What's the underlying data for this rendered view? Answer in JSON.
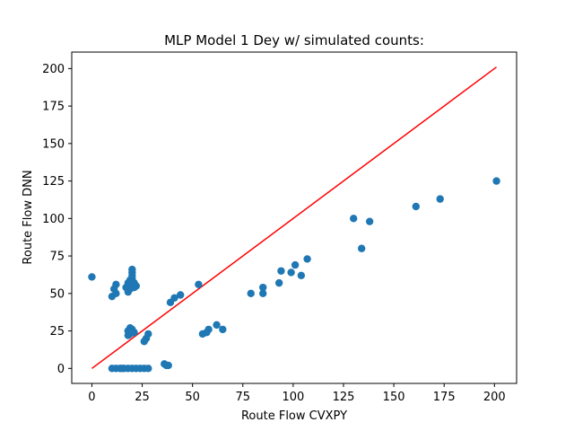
{
  "chart_data": {
    "type": "scatter",
    "title": "MLP Model 1 Dey w/ simulated counts:",
    "xlabel": "Route Flow CVXPY",
    "ylabel": "Route Flow DNN",
    "xlim": [
      -10,
      211
    ],
    "ylim": [
      -10,
      211
    ],
    "xticks": [
      0,
      25,
      50,
      75,
      100,
      125,
      150,
      175,
      200
    ],
    "yticks": [
      0,
      25,
      50,
      75,
      100,
      125,
      150,
      175,
      200
    ],
    "grid": false,
    "colors": {
      "points": "#1f77b4",
      "line": "#ff0000"
    },
    "series": [
      {
        "kind": "points",
        "x": [
          0,
          10,
          11,
          12,
          12,
          18,
          19,
          19,
          20,
          20,
          20,
          21,
          22,
          17,
          18,
          19,
          20,
          21,
          18,
          19,
          20,
          21,
          19,
          20,
          18,
          20,
          10,
          12,
          14,
          15,
          16,
          18,
          20,
          22,
          24,
          26,
          28,
          36,
          37,
          38,
          18,
          20,
          26,
          27,
          28,
          39,
          41,
          44,
          53,
          55,
          57,
          58,
          62,
          65,
          79,
          85,
          85,
          93,
          94,
          99,
          101,
          104,
          107,
          130,
          134,
          138,
          161,
          173,
          201
        ],
        "y": [
          61,
          48,
          53,
          50,
          56,
          51,
          53,
          58,
          56,
          60,
          64,
          57,
          55,
          54,
          57,
          59,
          62,
          54,
          22,
          27,
          25,
          24,
          23,
          26,
          25,
          66,
          0,
          0,
          0,
          0,
          0,
          0,
          0,
          0,
          0,
          0,
          0,
          3,
          2,
          2,
          25,
          24,
          18,
          20,
          23,
          44,
          47,
          49,
          56,
          23,
          24,
          26,
          29,
          26,
          50,
          50,
          54,
          57,
          65,
          64,
          69,
          62,
          73,
          100,
          80,
          98,
          108,
          113,
          125
        ]
      },
      {
        "kind": "line",
        "x": [
          0,
          201
        ],
        "y": [
          0,
          201
        ]
      }
    ]
  }
}
